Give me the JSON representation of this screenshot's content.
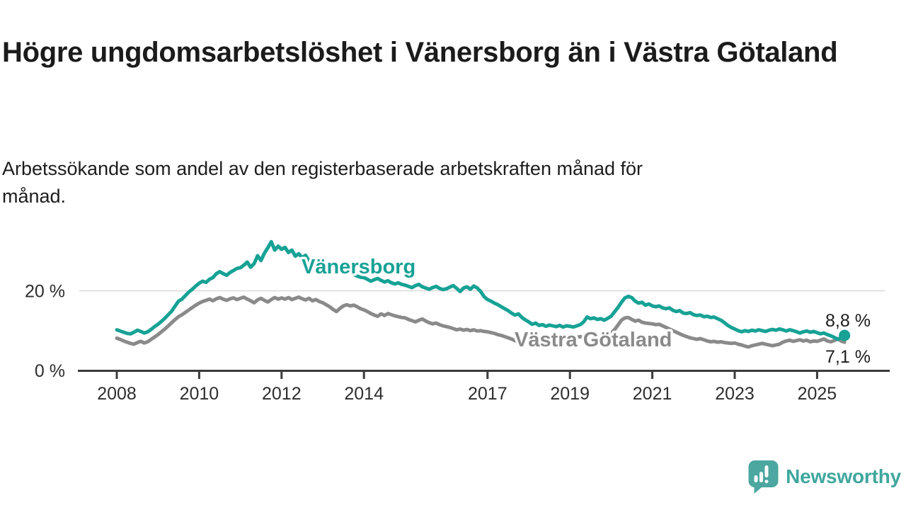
{
  "title": "Högre ungdomsarbetslöshet i Vänersborg än i Västra Götaland",
  "subtitle": "Arbetssökande som andel av den registerbaserade arbetskraften månad för månad.",
  "branding": {
    "name": "Newsworthy",
    "logo_color": "#4ba79f",
    "text_color": "#3fa79d"
  },
  "chart_data": {
    "type": "line",
    "title": "Högre ungdomsarbetslöshet i Vänersborg än i Västra Götaland",
    "subtitle": "Arbetssökande som andel av den registerbaserade arbetskraften månad för månad.",
    "x_unit": "month",
    "x_start_year": 2008,
    "points_per_year": 12,
    "x_end": "2025-09",
    "grid": "horizontal-20-only",
    "legend": "inline-labels",
    "ylim": [
      0,
      36
    ],
    "x_ticks": [
      2008,
      2010,
      2012,
      2014,
      2017,
      2019,
      2021,
      2023,
      2025
    ],
    "x_tick_labels": [
      "2008",
      "2010",
      "2012",
      "2014",
      "2017",
      "2019",
      "2021",
      "2023",
      "2025"
    ],
    "y_ticks": [
      {
        "value": 20,
        "label": "20 %",
        "grid": true
      },
      {
        "value": 0,
        "label": "0 %",
        "grid": false
      }
    ],
    "series": [
      {
        "name": "Vänersborg",
        "color": "#17a295",
        "end_label": "8,8 %",
        "end_value": 8.8,
        "values": [
          10.2,
          9.9,
          9.6,
          9.3,
          9.2,
          9.6,
          10.1,
          9.8,
          9.4,
          9.7,
          10.3,
          11.0,
          11.6,
          12.3,
          13.1,
          14.0,
          14.9,
          16.2,
          17.4,
          17.9,
          18.8,
          19.7,
          20.4,
          21.2,
          21.9,
          22.4,
          22.1,
          22.9,
          23.3,
          24.3,
          24.8,
          24.3,
          23.9,
          24.6,
          25.1,
          25.6,
          25.8,
          26.4,
          27.2,
          25.9,
          26.8,
          28.8,
          27.6,
          29.4,
          30.8,
          32.3,
          30.2,
          31.2,
          30.4,
          30.9,
          29.6,
          30.2,
          28.7,
          29.3,
          28.3,
          28.9,
          27.5,
          28.1,
          27.3,
          27.8,
          27.4,
          26.9,
          27.2,
          26.5,
          26.0,
          26.4,
          25.7,
          25.2,
          24.6,
          24.1,
          23.7,
          23.4,
          23.3,
          22.9,
          22.4,
          22.8,
          23.1,
          22.6,
          22.2,
          22.5,
          22.0,
          21.7,
          22.0,
          21.6,
          21.4,
          21.1,
          20.8,
          21.3,
          21.6,
          21.0,
          20.7,
          20.4,
          20.8,
          21.1,
          20.6,
          20.3,
          20.5,
          20.9,
          21.3,
          20.6,
          19.8,
          20.7,
          21.0,
          20.4,
          21.2,
          20.7,
          19.8,
          18.5,
          17.8,
          17.4,
          16.9,
          16.5,
          16.0,
          15.5,
          15.0,
          14.4,
          13.9,
          14.2,
          13.3,
          12.7,
          12.2,
          11.6,
          11.9,
          11.3,
          11.5,
          11.1,
          11.4,
          11.2,
          11.0,
          11.3,
          10.9,
          11.2,
          11.1,
          10.9,
          11.2,
          11.5,
          12.2,
          13.4,
          13.0,
          13.2,
          12.8,
          13.0,
          12.6,
          13.1,
          13.6,
          14.7,
          15.8,
          17.1,
          18.2,
          18.6,
          18.3,
          17.4,
          16.9,
          17.1,
          16.4,
          16.7,
          16.2,
          16.0,
          16.2,
          15.7,
          15.5,
          15.7,
          15.1,
          14.8,
          15.0,
          14.4,
          14.3,
          14.5,
          14.0,
          13.8,
          13.9,
          13.5,
          13.6,
          13.3,
          13.4,
          13.0,
          12.6,
          12.0,
          11.3,
          10.8,
          10.4,
          10.0,
          9.7,
          10.0,
          9.8,
          10.1,
          9.9,
          10.2,
          10.0,
          9.8,
          10.1,
          10.3,
          10.1,
          10.4,
          10.2,
          9.9,
          10.2,
          10.0,
          9.7,
          9.4,
          9.7,
          9.9,
          9.6,
          9.8,
          9.5,
          9.2,
          9.4,
          9.0,
          8.7,
          8.3,
          7.8,
          8.2,
          8.8
        ]
      },
      {
        "name": "Västra Götaland",
        "color": "#8a8a8a",
        "end_label": "7,1 %",
        "end_value": 7.1,
        "values": [
          8.1,
          7.8,
          7.4,
          7.1,
          6.8,
          6.6,
          7.0,
          7.3,
          6.9,
          7.2,
          7.8,
          8.4,
          9.0,
          9.7,
          10.4,
          11.2,
          12.0,
          12.8,
          13.5,
          14.0,
          14.6,
          15.2,
          15.8,
          16.4,
          16.9,
          17.3,
          17.6,
          17.9,
          17.5,
          18.0,
          18.3,
          17.9,
          17.6,
          18.0,
          18.2,
          17.8,
          18.1,
          18.4,
          17.9,
          17.5,
          17.0,
          17.7,
          18.1,
          17.6,
          17.2,
          17.8,
          18.3,
          17.9,
          18.2,
          17.9,
          18.3,
          17.8,
          18.1,
          18.4,
          18.0,
          17.7,
          18.1,
          17.5,
          17.8,
          17.3,
          17.0,
          16.5,
          16.0,
          15.3,
          14.8,
          15.6,
          16.2,
          16.5,
          16.2,
          16.4,
          16.0,
          15.5,
          15.2,
          14.8,
          14.3,
          13.9,
          13.6,
          14.2,
          13.8,
          14.3,
          14.0,
          13.7,
          13.5,
          13.3,
          13.2,
          12.8,
          12.5,
          12.2,
          12.6,
          12.9,
          12.4,
          12.0,
          11.7,
          11.9,
          11.5,
          11.2,
          11.0,
          10.8,
          10.5,
          10.2,
          10.4,
          10.1,
          10.3,
          10.0,
          10.2,
          9.9,
          10.0,
          9.8,
          9.7,
          9.5,
          9.3,
          9.0,
          8.8,
          8.5,
          8.2,
          7.9,
          7.5,
          7.2,
          7.9,
          8.3,
          8.5,
          8.2,
          8.4,
          8.1,
          8.3,
          8.0,
          8.2,
          7.9,
          8.1,
          8.3,
          8.0,
          8.2,
          8.4,
          8.1,
          8.3,
          8.5,
          8.2,
          8.4,
          8.6,
          8.8,
          8.5,
          8.7,
          8.9,
          9.1,
          9.4,
          10.2,
          11.4,
          12.6,
          13.2,
          13.3,
          12.8,
          12.4,
          12.6,
          12.1,
          11.9,
          11.8,
          11.7,
          11.5,
          11.6,
          11.2,
          10.8,
          10.4,
          10.0,
          9.6,
          9.2,
          8.8,
          8.5,
          8.2,
          8.0,
          7.8,
          8.0,
          7.7,
          7.4,
          7.2,
          7.3,
          7.1,
          7.2,
          7.0,
          6.9,
          6.8,
          6.9,
          6.6,
          6.4,
          6.1,
          5.9,
          6.2,
          6.4,
          6.6,
          6.8,
          6.6,
          6.4,
          6.2,
          6.4,
          6.6,
          7.1,
          7.4,
          7.6,
          7.3,
          7.5,
          7.7,
          7.4,
          7.6,
          7.2,
          7.4,
          7.3,
          7.6,
          7.9,
          7.4,
          7.2,
          7.5,
          8.0,
          7.4,
          7.1
        ]
      }
    ]
  }
}
